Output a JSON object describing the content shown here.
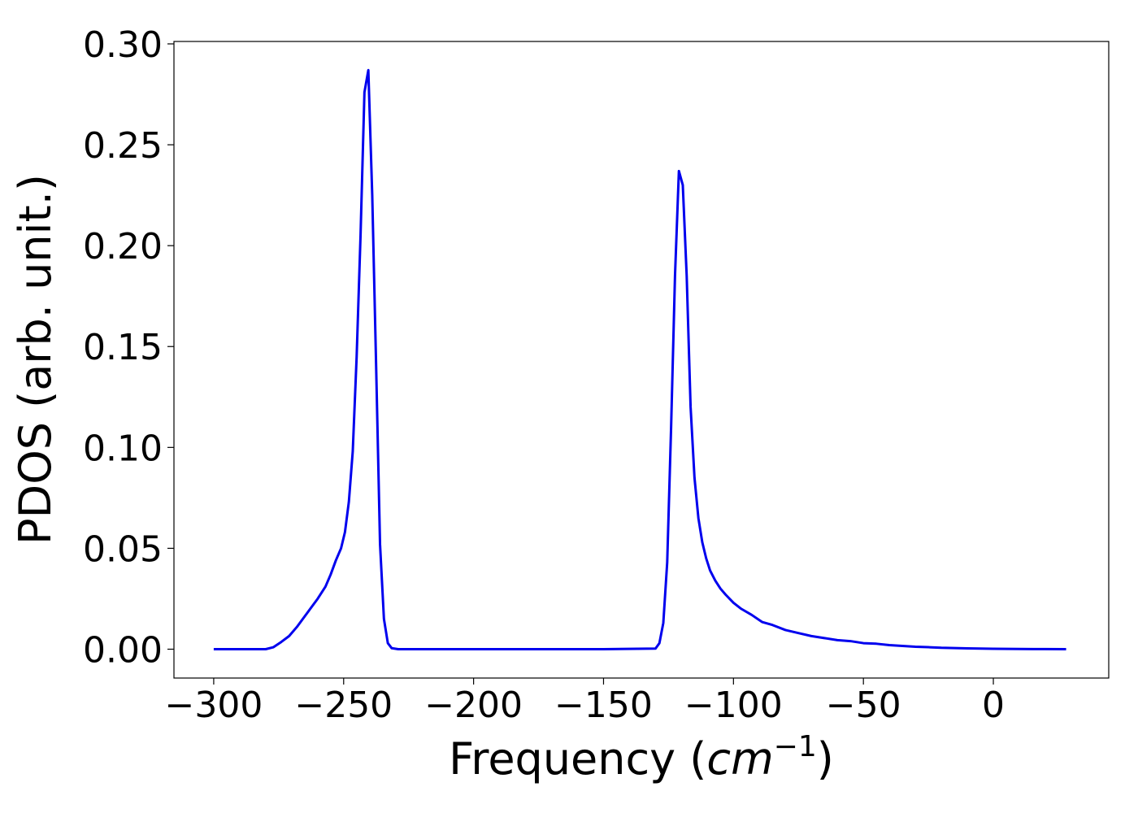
{
  "chart_data": {
    "type": "line",
    "x_label_parts": [
      "Frequency (",
      "cm",
      "−1",
      ")"
    ],
    "y_label": "PDOS (arb. unit.)",
    "x": [
      -300,
      -280,
      -277,
      -274,
      -271,
      -268,
      -264,
      -260,
      -257,
      -255,
      -253,
      -251,
      -249.5,
      -248,
      -246.5,
      -245,
      -243.5,
      -242,
      -240.5,
      -239,
      -237.5,
      -236,
      -234.5,
      -233,
      -231.5,
      -229,
      -150,
      -130,
      -128.5,
      -127,
      -125.5,
      -124,
      -122.5,
      -121,
      -119.5,
      -118,
      -116.5,
      -115,
      -113.5,
      -112,
      -110.5,
      -109,
      -107,
      -105,
      -103,
      -100,
      -97,
      -93,
      -89,
      -85,
      -80,
      -75,
      -70,
      -65,
      -60,
      -55,
      -50,
      -45,
      -40,
      -35,
      -30,
      -25,
      -20,
      -10,
      0,
      10,
      20,
      28
    ],
    "series": [
      {
        "color": "#0000ee",
        "values": [
          0,
          0,
          0.001,
          0.0036,
          0.0065,
          0.011,
          0.018,
          0.025,
          0.031,
          0.037,
          0.044,
          0.05,
          0.058,
          0.073,
          0.098,
          0.145,
          0.205,
          0.276,
          0.287,
          0.225,
          0.14,
          0.052,
          0.015,
          0.003,
          0.0005,
          0,
          0,
          0.0003,
          0.003,
          0.013,
          0.043,
          0.11,
          0.185,
          0.237,
          0.23,
          0.185,
          0.12,
          0.085,
          0.065,
          0.053,
          0.045,
          0.039,
          0.034,
          0.03,
          0.027,
          0.023,
          0.02,
          0.017,
          0.0135,
          0.012,
          0.0095,
          0.008,
          0.0065,
          0.0055,
          0.0045,
          0.004,
          0.003,
          0.0027,
          0.002,
          0.0016,
          0.0012,
          0.001,
          0.0007,
          0.0004,
          0.0002,
          0.0001,
          5e-05,
          0
        ]
      }
    ],
    "xlim": [
      -315.3,
      44.4
    ],
    "ylim": [
      -0.0143,
      0.3012
    ],
    "xticks": [
      {
        "value": -300,
        "label": "−300"
      },
      {
        "value": -250,
        "label": "−250"
      },
      {
        "value": -200,
        "label": "−200"
      },
      {
        "value": -150,
        "label": "−150"
      },
      {
        "value": -100,
        "label": "−100"
      },
      {
        "value": -50,
        "label": "−50"
      },
      0
    ],
    "yticks": [
      {
        "value": 0,
        "label": "0.00"
      },
      {
        "value": 0.05,
        "label": "0.05"
      },
      {
        "value": 0.1,
        "label": "0.10"
      },
      {
        "value": 0.15,
        "label": "0.15"
      },
      {
        "value": 0.2,
        "label": "0.20"
      },
      {
        "value": 0.25,
        "label": "0.25"
      },
      {
        "value": 0.3,
        "label": "0.30"
      }
    ]
  }
}
